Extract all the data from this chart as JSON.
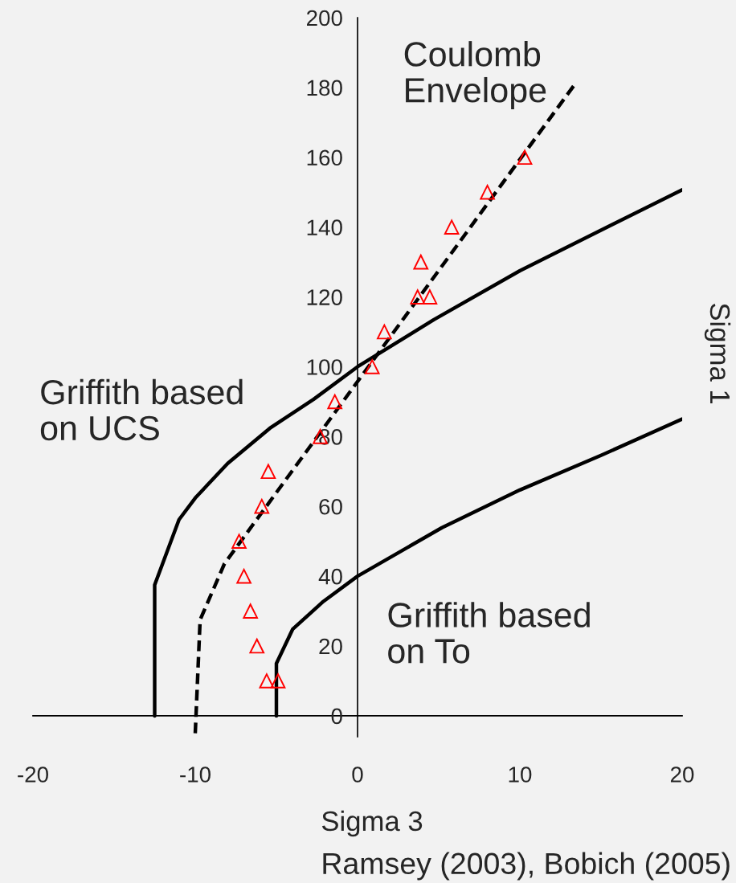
{
  "chart_data": {
    "type": "line",
    "xlabel": "Sigma 3",
    "ylabel": "Sigma 1",
    "xlim": [
      -20,
      20
    ],
    "ylim": [
      -6,
      200
    ],
    "xticks": [
      -20,
      -10,
      0,
      10,
      20
    ],
    "yticks": [
      0,
      20,
      40,
      60,
      80,
      100,
      120,
      140,
      160,
      180,
      200
    ],
    "grid": false,
    "annotations": [
      "Ramsey (2003), Bobich (2005)"
    ],
    "series": [
      {
        "name": "Coulomb\nEnvelope",
        "type": "line",
        "line_style": "dashed",
        "marker": "none",
        "color": "#000000",
        "x": [
          -10,
          -9.7,
          -8.2,
          13.4
        ],
        "values": [
          -5,
          27.5,
          43.6,
          181
        ]
      },
      {
        "name": "Griffith based\non UCS",
        "type": "line",
        "line_style": "solid",
        "marker": "none",
        "color": "#000000",
        "x": [
          -12.5,
          -12.5,
          -11,
          -10,
          -8,
          -5.4,
          -2.7,
          0,
          4.7,
          10,
          20
        ],
        "values": [
          0,
          37.5,
          56.2,
          62.4,
          72.3,
          82.4,
          90.7,
          100,
          113.5,
          127.5,
          150.7
        ]
      },
      {
        "name": "Griffith based\non To",
        "type": "line",
        "line_style": "solid",
        "marker": "none",
        "color": "#000000",
        "x": [
          -5,
          -5,
          -4,
          -2.1,
          0,
          5.2,
          10,
          15,
          20
        ],
        "values": [
          0,
          15,
          24.8,
          32.8,
          40,
          53.9,
          64.7,
          74.6,
          85
        ]
      },
      {
        "type": "scatter",
        "marker": "triangle",
        "color": "#ff0000",
        "x": [
          -5.6,
          -4.9,
          -6.2,
          -6.6,
          -7.0,
          -7.3,
          -5.9,
          -5.5,
          -2.3,
          -1.4,
          0.9,
          1.65,
          3.7,
          4.45,
          3.9,
          5.8,
          8.0,
          10.3
        ],
        "values": [
          10,
          10,
          20,
          30,
          40,
          50,
          60,
          70,
          80,
          90,
          100,
          110,
          120,
          120,
          130,
          140,
          150,
          160
        ]
      }
    ]
  }
}
